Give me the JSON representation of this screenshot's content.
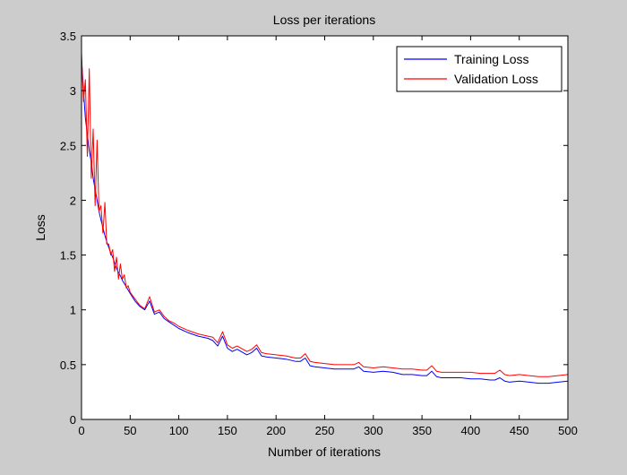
{
  "chart_data": {
    "type": "line",
    "title": "Loss per iterations",
    "xlabel": "Number of iterations",
    "ylabel": "Loss",
    "xlim": [
      0,
      500
    ],
    "ylim": [
      0,
      3.5
    ],
    "xticks": [
      0,
      50,
      100,
      150,
      200,
      250,
      300,
      350,
      400,
      450,
      500
    ],
    "yticks": [
      0,
      0.5,
      1,
      1.5,
      2,
      2.5,
      3,
      3.5
    ],
    "xtick_labels": [
      "0",
      "50",
      "100",
      "150",
      "200",
      "250",
      "300",
      "350",
      "400",
      "450",
      "500"
    ],
    "ytick_labels": [
      "0",
      "0.5",
      "1",
      "1.5",
      "2",
      "2.5",
      "3",
      "3.5"
    ],
    "grid": false,
    "legend_position": "top-right",
    "series": [
      {
        "name": "Training Loss",
        "color": "#0000ff",
        "x": [
          0,
          2,
          4,
          6,
          8,
          10,
          12,
          14,
          16,
          18,
          20,
          22,
          24,
          26,
          28,
          30,
          32,
          34,
          36,
          38,
          40,
          42,
          44,
          46,
          48,
          50,
          55,
          60,
          65,
          70,
          75,
          80,
          85,
          90,
          95,
          100,
          110,
          120,
          130,
          135,
          140,
          145,
          150,
          155,
          160,
          170,
          175,
          180,
          185,
          190,
          200,
          210,
          220,
          225,
          230,
          235,
          240,
          250,
          260,
          270,
          280,
          285,
          290,
          300,
          310,
          320,
          330,
          340,
          350,
          355,
          360,
          365,
          370,
          380,
          390,
          400,
          410,
          420,
          425,
          430,
          435,
          440,
          450,
          460,
          470,
          480,
          490,
          500
        ],
        "y": [
          3.3,
          3.0,
          2.75,
          2.6,
          2.45,
          2.35,
          2.2,
          2.1,
          2.0,
          1.9,
          1.82,
          1.75,
          1.68,
          1.62,
          1.57,
          1.52,
          1.48,
          1.43,
          1.38,
          1.34,
          1.31,
          1.27,
          1.24,
          1.21,
          1.18,
          1.15,
          1.08,
          1.03,
          1.0,
          1.08,
          0.96,
          0.98,
          0.92,
          0.89,
          0.86,
          0.83,
          0.79,
          0.76,
          0.74,
          0.72,
          0.67,
          0.76,
          0.65,
          0.62,
          0.64,
          0.59,
          0.61,
          0.65,
          0.58,
          0.57,
          0.56,
          0.55,
          0.53,
          0.53,
          0.56,
          0.49,
          0.48,
          0.47,
          0.46,
          0.46,
          0.46,
          0.48,
          0.44,
          0.43,
          0.44,
          0.43,
          0.41,
          0.41,
          0.4,
          0.4,
          0.44,
          0.39,
          0.38,
          0.38,
          0.38,
          0.37,
          0.37,
          0.36,
          0.36,
          0.38,
          0.35,
          0.34,
          0.35,
          0.34,
          0.33,
          0.33,
          0.34,
          0.35
        ]
      },
      {
        "name": "Validation Loss",
        "color": "#ff0000",
        "x": [
          0,
          2,
          4,
          6,
          8,
          10,
          12,
          14,
          16,
          18,
          20,
          22,
          24,
          26,
          28,
          30,
          32,
          34,
          36,
          38,
          40,
          42,
          44,
          46,
          48,
          50,
          55,
          60,
          65,
          70,
          75,
          80,
          85,
          90,
          95,
          100,
          110,
          120,
          130,
          135,
          140,
          145,
          150,
          155,
          160,
          170,
          175,
          180,
          185,
          190,
          200,
          210,
          220,
          225,
          230,
          235,
          240,
          250,
          260,
          270,
          280,
          285,
          290,
          300,
          310,
          320,
          330,
          340,
          350,
          355,
          360,
          365,
          370,
          380,
          390,
          400,
          410,
          420,
          425,
          430,
          435,
          440,
          450,
          460,
          470,
          480,
          490,
          500
        ],
        "y": [
          3.35,
          2.9,
          3.1,
          2.4,
          3.2,
          2.2,
          2.65,
          1.95,
          2.55,
          1.9,
          1.95,
          1.7,
          1.98,
          1.6,
          1.6,
          1.5,
          1.55,
          1.35,
          1.48,
          1.28,
          1.42,
          1.28,
          1.32,
          1.2,
          1.22,
          1.16,
          1.1,
          1.04,
          1.01,
          1.12,
          0.98,
          1.0,
          0.94,
          0.9,
          0.88,
          0.85,
          0.81,
          0.78,
          0.76,
          0.75,
          0.7,
          0.8,
          0.68,
          0.65,
          0.67,
          0.62,
          0.64,
          0.68,
          0.61,
          0.6,
          0.59,
          0.58,
          0.56,
          0.56,
          0.6,
          0.53,
          0.52,
          0.51,
          0.5,
          0.5,
          0.5,
          0.52,
          0.48,
          0.47,
          0.48,
          0.47,
          0.46,
          0.46,
          0.45,
          0.45,
          0.49,
          0.44,
          0.43,
          0.43,
          0.43,
          0.43,
          0.42,
          0.42,
          0.42,
          0.45,
          0.41,
          0.4,
          0.41,
          0.4,
          0.39,
          0.39,
          0.4,
          0.41
        ]
      }
    ]
  }
}
